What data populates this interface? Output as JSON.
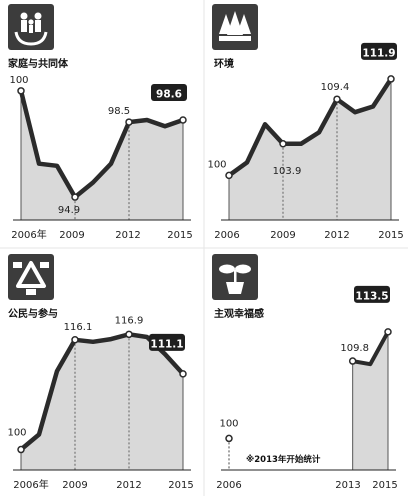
{
  "colors": {
    "line": "#2b2b2b",
    "fill": "#d9d9d9",
    "badge": "#1f1f1f",
    "badge_text": "#ffffff",
    "icon_bg": "#3c3c3c"
  },
  "note": "※2013年开始统计",
  "chart_data": [
    {
      "type": "area",
      "title": "家庭与共同体",
      "icon": "family-icon",
      "x": [
        2006,
        2007,
        2008,
        2009,
        2010,
        2011,
        2012,
        2013,
        2014,
        2015
      ],
      "values": [
        100,
        96.5,
        96.4,
        94.9,
        95.6,
        96.5,
        98.5,
        98.6,
        98.3,
        98.6
      ],
      "xticks": [
        "2006年",
        "2009",
        "2012",
        "2015"
      ],
      "ylim": [
        93.8,
        101
      ],
      "data_labels": [
        {
          "x": 2006,
          "text": "100"
        },
        {
          "x": 2009,
          "text": "94.9"
        },
        {
          "x": 2012,
          "text": "98.5"
        },
        {
          "x": 2015,
          "text": "98.6",
          "badge": true
        }
      ],
      "dashed_x": [
        2009,
        2012
      ]
    },
    {
      "type": "area",
      "title": "环境",
      "icon": "trees-icon",
      "x": [
        2006,
        2007,
        2008,
        2009,
        2010,
        2011,
        2012,
        2013,
        2014,
        2015
      ],
      "values": [
        100,
        101.6,
        106.3,
        103.9,
        103.9,
        105.3,
        109.4,
        107.8,
        108.5,
        111.9
      ],
      "xticks": [
        "2006",
        "2009",
        "2012",
        "2015"
      ],
      "ylim": [
        94.5,
        113
      ],
      "data_labels": [
        {
          "x": 2006,
          "text": "100"
        },
        {
          "x": 2009,
          "text": "103.9"
        },
        {
          "x": 2012,
          "text": "109.4"
        },
        {
          "x": 2015,
          "text": "111.9",
          "badge": true
        }
      ],
      "dashed_x": [
        2009,
        2012
      ]
    },
    {
      "type": "area",
      "title": "公民与参与",
      "icon": "recycle-hands-icon",
      "x": [
        2006,
        2007,
        2008,
        2009,
        2010,
        2011,
        2012,
        2013,
        2014,
        2015
      ],
      "values": [
        100,
        102.2,
        111.5,
        116.1,
        115.8,
        116.2,
        116.9,
        116.5,
        114,
        111.1
      ],
      "xticks": [
        "2006年",
        "2009",
        "2012",
        "2015"
      ],
      "ylim": [
        97,
        119
      ],
      "data_labels": [
        {
          "x": 2006,
          "text": "100"
        },
        {
          "x": 2009,
          "text": "116.1"
        },
        {
          "x": 2012,
          "text": "116.9"
        },
        {
          "x": 2015,
          "text": "111.1",
          "badge": true
        }
      ],
      "dashed_x": [
        2009,
        2012
      ]
    },
    {
      "type": "area",
      "title": "主观幸福感",
      "icon": "sprout-icon",
      "x": [
        2006,
        2013,
        2014,
        2015
      ],
      "values": [
        100,
        109.8,
        109.4,
        113.5
      ],
      "xticks": [
        "2006",
        "2013",
        "2015"
      ],
      "ylim": [
        96,
        115
      ],
      "data_labels": [
        {
          "x": 2006,
          "text": "100"
        },
        {
          "x": 2013,
          "text": "109.8"
        },
        {
          "x": 2015,
          "text": "113.5",
          "badge": true
        }
      ],
      "dashed_x": [
        2006
      ]
    }
  ]
}
